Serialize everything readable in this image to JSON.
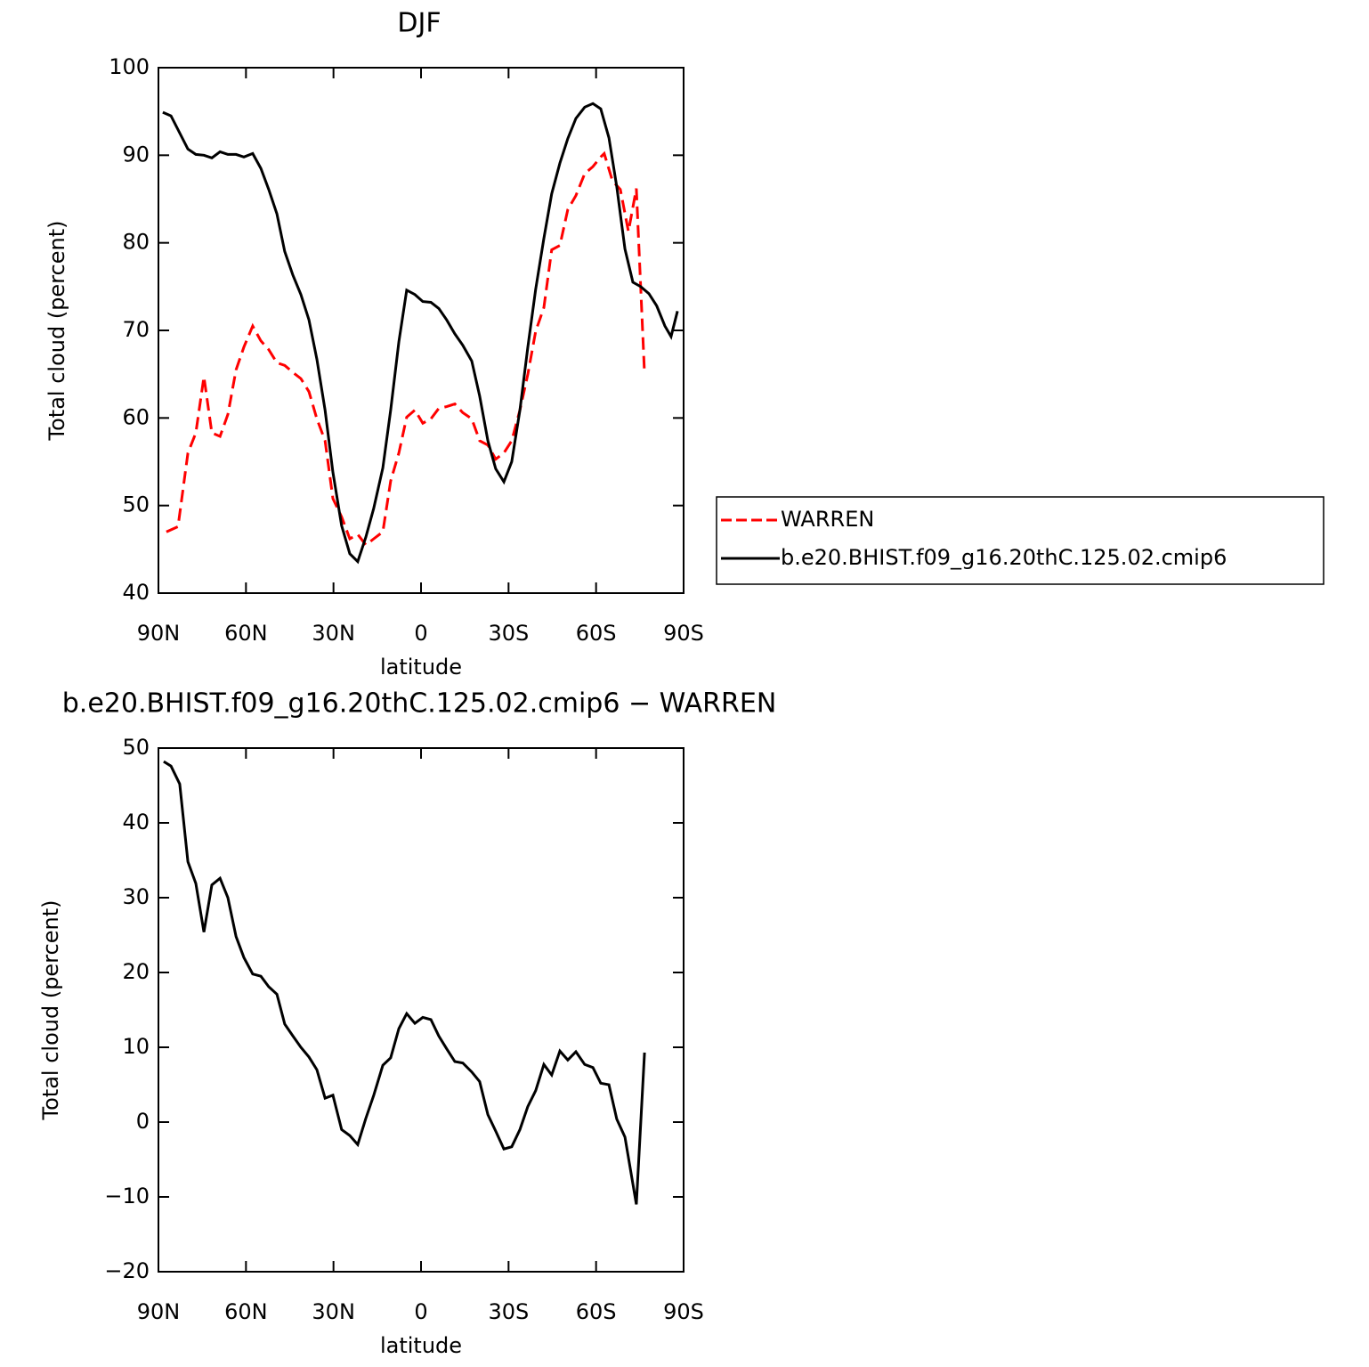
{
  "chart_data": [
    {
      "type": "line",
      "title": "DJF",
      "xlabel": "latitude",
      "ylabel": "Total cloud (percent)",
      "xlim": [
        90,
        -90
      ],
      "xticks": [
        {
          "value": 90,
          "label": "90N"
        },
        {
          "value": 60,
          "label": "60N"
        },
        {
          "value": 30,
          "label": "30N"
        },
        0,
        {
          "value": -30,
          "label": "30S"
        },
        {
          "value": -60,
          "label": "60S"
        },
        {
          "value": -90,
          "label": "90S"
        }
      ],
      "ylim": [
        40,
        100
      ],
      "yticks": [
        40,
        50,
        60,
        70,
        80,
        90,
        100
      ],
      "legend": "right",
      "series": [
        {
          "name": "WARREN",
          "color": "#ff0000",
          "dash": "dashed",
          "x": [
            87.3,
            83.3,
            79.9,
            77.2,
            74.4,
            71.7,
            68.9,
            66.2,
            63.4,
            60.7,
            57.7,
            54.9,
            52.2,
            49.4,
            46.7,
            43.9,
            41.2,
            38.4,
            35.7,
            32.9,
            30.2,
            27.2,
            24.4,
            21.7,
            18.9,
            16.2,
            13.1,
            10.4,
            7.6,
            4.9,
            2.1,
            -0.6,
            -3.4,
            -6.1,
            -8.8,
            -11.6,
            -14.3,
            -17.4,
            -20.1,
            -22.9,
            -25.6,
            -28.4,
            -31.1,
            -33.9,
            -36.6,
            -39.3,
            -42.1,
            -44.8,
            -47.6,
            -50.3,
            -53.1,
            -56.1,
            -58.9,
            -61.6,
            -62.8,
            -65.6,
            -68.3,
            -71.1,
            -73.8,
            -76.6
          ],
          "values": [
            47.0,
            47.6,
            56.0,
            58.3,
            64.7,
            58.3,
            57.9,
            60.4,
            65.5,
            68.1,
            70.5,
            68.8,
            67.8,
            66.3,
            66.0,
            65.2,
            64.5,
            63.0,
            59.9,
            57.4,
            50.8,
            48.7,
            46.2,
            46.7,
            45.5,
            46.2,
            47.0,
            52.8,
            56.0,
            60.1,
            60.9,
            59.4,
            59.9,
            61.1,
            61.3,
            61.6,
            60.6,
            59.9,
            57.4,
            56.9,
            55.3,
            56.0,
            57.4,
            60.9,
            65.0,
            69.9,
            72.6,
            79.2,
            79.7,
            83.8,
            85.4,
            87.9,
            88.7,
            89.8,
            90.2,
            87.1,
            86.1,
            81.3,
            86.2,
            65.0
          ]
        },
        {
          "name": "b.e20.BHIST.f09_g16.20thC.125.02.cmip6",
          "color": "#000000",
          "dash": "solid",
          "x": [
            88.5,
            85.7,
            79.9,
            77.2,
            74.4,
            71.7,
            68.9,
            66.2,
            63.4,
            60.7,
            57.7,
            54.9,
            52.2,
            49.4,
            46.7,
            43.9,
            41.2,
            38.4,
            35.7,
            32.9,
            30.2,
            27.2,
            24.4,
            21.7,
            18.9,
            16.2,
            13.1,
            10.4,
            7.6,
            4.9,
            2.1,
            -0.6,
            -3.4,
            -6.1,
            -8.8,
            -11.6,
            -14.3,
            -17.4,
            -20.1,
            -22.9,
            -25.6,
            -28.4,
            -31.1,
            -33.9,
            -36.6,
            -39.3,
            -42.1,
            -44.8,
            -47.6,
            -50.3,
            -53.1,
            -56.1,
            -58.9,
            -61.6,
            -64.4,
            -67.1,
            -69.9,
            -72.6,
            -75.3,
            -78.1,
            -80.8,
            -83.6,
            -85.7,
            -87.9
          ],
          "values": [
            94.9,
            94.5,
            90.7,
            90.1,
            90.0,
            89.7,
            90.4,
            90.1,
            90.1,
            89.8,
            90.2,
            88.5,
            86.1,
            83.3,
            79.0,
            76.3,
            74.1,
            71.2,
            66.7,
            60.9,
            53.8,
            47.7,
            44.5,
            43.6,
            46.4,
            49.7,
            54.3,
            60.9,
            68.7,
            74.6,
            74.1,
            73.3,
            73.2,
            72.5,
            71.2,
            69.6,
            68.3,
            66.5,
            62.5,
            57.4,
            54.2,
            52.7,
            55.0,
            60.9,
            68.1,
            74.7,
            80.5,
            85.6,
            89.1,
            91.9,
            94.2,
            95.5,
            95.9,
            95.3,
            92.0,
            86.4,
            79.3,
            75.5,
            75.0,
            74.2,
            72.8,
            70.5,
            69.3,
            72.2
          ]
        }
      ]
    },
    {
      "type": "line",
      "title": "b.e20.BHIST.f09_g16.20thC.125.02.cmip6 − WARREN",
      "xlabel": "latitude",
      "ylabel": "Total cloud (percent)",
      "xlim": [
        90,
        -90
      ],
      "xticks": [
        {
          "value": 90,
          "label": "90N"
        },
        {
          "value": 60,
          "label": "60N"
        },
        {
          "value": 30,
          "label": "30N"
        },
        0,
        {
          "value": -30,
          "label": "30S"
        },
        {
          "value": -60,
          "label": "60S"
        },
        {
          "value": -90,
          "label": "90S"
        }
      ],
      "ylim": [
        -20,
        50
      ],
      "yticks": [
        {
          "value": -20,
          "label": "−20"
        },
        {
          "value": -10,
          "label": "−10"
        },
        0,
        10,
        20,
        30,
        40,
        50
      ],
      "series": [
        {
          "color": "#000000",
          "dash": "solid",
          "x": [
            88.2,
            85.7,
            82.7,
            79.9,
            77.2,
            74.4,
            71.7,
            68.9,
            66.2,
            63.4,
            60.7,
            57.7,
            54.9,
            52.2,
            49.4,
            46.7,
            43.9,
            41.2,
            38.4,
            35.7,
            32.9,
            30.2,
            27.2,
            24.4,
            21.7,
            18.9,
            16.2,
            13.1,
            10.4,
            7.6,
            4.9,
            2.1,
            -0.6,
            -3.4,
            -6.1,
            -8.8,
            -11.6,
            -14.3,
            -17.4,
            -20.1,
            -22.9,
            -25.6,
            -28.4,
            -31.1,
            -33.9,
            -36.6,
            -39.3,
            -42.1,
            -44.8,
            -47.6,
            -50.3,
            -53.1,
            -56.1,
            -58.9,
            -61.6,
            -64.4,
            -67.1,
            -69.9,
            -73.8,
            -76.6
          ],
          "values": [
            48.2,
            47.6,
            45.2,
            34.8,
            31.9,
            25.4,
            31.7,
            32.6,
            30.0,
            24.8,
            22.0,
            19.8,
            19.5,
            18.1,
            17.1,
            13.1,
            11.5,
            10.0,
            8.7,
            7.0,
            3.2,
            3.6,
            -1.0,
            -1.8,
            -3.0,
            0.5,
            3.6,
            7.6,
            8.6,
            12.5,
            14.5,
            13.2,
            14.0,
            13.7,
            11.5,
            9.8,
            8.1,
            7.9,
            6.7,
            5.4,
            1.0,
            -1.2,
            -3.6,
            -3.3,
            -1.0,
            2.1,
            4.2,
            7.7,
            6.3,
            9.5,
            8.3,
            9.4,
            7.7,
            7.3,
            5.2,
            5.0,
            0.4,
            -2.0,
            -11.0,
            9.3
          ]
        }
      ]
    }
  ]
}
